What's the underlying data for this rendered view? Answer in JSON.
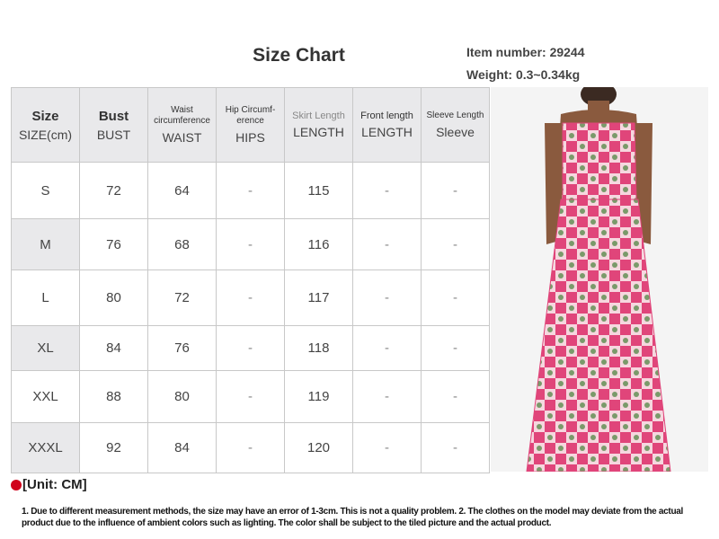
{
  "title": "Size Chart",
  "item_number": "Item number: 29244",
  "weight": "Weight: 0.3~0.34kg",
  "headers": [
    {
      "top": "Size",
      "bottom": "SIZE(cm)"
    },
    {
      "top": "Bust",
      "bottom": "BUST"
    },
    {
      "top": "Waist circumference",
      "bottom": "WAIST"
    },
    {
      "top": "Hip Circumf-erence",
      "bottom": "HIPS"
    },
    {
      "top": "Skirt Length",
      "bottom": "LENGTH"
    },
    {
      "top": "Front length",
      "bottom": "LENGTH"
    },
    {
      "top": "Sleeve Length",
      "bottom": "Sleeve"
    }
  ],
  "rows": [
    [
      "S",
      "72",
      "64",
      "-",
      "115",
      "-",
      "-"
    ],
    [
      "M",
      "76",
      "68",
      "-",
      "116",
      "-",
      "-"
    ],
    [
      "L",
      "80",
      "72",
      "-",
      "117",
      "-",
      "-"
    ],
    [
      "XL",
      "84",
      "76",
      "-",
      "118",
      "-",
      "-"
    ],
    [
      "XXL",
      "88",
      "80",
      "-",
      "119",
      "-",
      "-"
    ],
    [
      "XXXL",
      "92",
      "84",
      "-",
      "120",
      "-",
      "-"
    ]
  ],
  "unit": "[Unit: CM]",
  "note": "1. Due to different measurement methods, the size may have an error of 1-3cm. This is not a quality problem. 2. The clothes on the model may deviate from the actual product due to the influence of ambient colors such as lighting. The color shall be subject to the tiled picture and the actual product.",
  "colors": {
    "accent_dot": "#d0021b",
    "header_bg": "#e9e9eb",
    "dress_pink": "#e0457a"
  }
}
